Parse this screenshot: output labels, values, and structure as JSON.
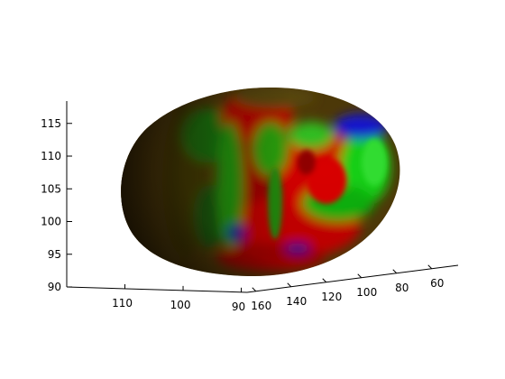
{
  "chart_data": {
    "type": "surface",
    "title": "",
    "xlabel": "",
    "ylabel": "",
    "zlabel": "",
    "grid": false,
    "box": false,
    "description_of_surface": "",
    "z_axis": {
      "ticks": [
        90,
        95,
        100,
        105,
        110,
        115
      ],
      "tick_labels": [
        "90",
        "95",
        "100",
        "105",
        "110",
        "115"
      ],
      "range": [
        90,
        118
      ]
    },
    "x_axis": {
      "ticks": [
        110,
        100,
        90
      ],
      "tick_labels": [
        "110",
        "100",
        "90"
      ],
      "range": [
        89,
        120
      ]
    },
    "y_axis": {
      "ticks": [
        160,
        140,
        120,
        100,
        80,
        60
      ],
      "tick_labels": [
        "160",
        "140",
        "120",
        "100",
        "80",
        "60"
      ],
      "range": [
        45,
        165
      ]
    },
    "colors": {
      "red": "#d40000",
      "green": "#10c010",
      "blue": "#1010c8",
      "olive": "#5a4408"
    }
  }
}
